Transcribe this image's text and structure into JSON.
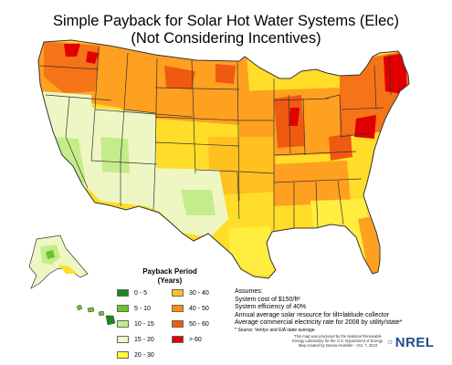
{
  "title_line1": "Simple Payback for Solar Hot Water Systems (Elec)",
  "title_line2": "(Not Considering Incentives)",
  "legend": {
    "title_line1": "Payback Period",
    "title_line2": "(Years)",
    "items": [
      {
        "label": "0 - 5",
        "color": "#1a8a1a"
      },
      {
        "label": "5 - 10",
        "color": "#6bc42c"
      },
      {
        "label": "10 - 15",
        "color": "#c5ec8a"
      },
      {
        "label": "15 - 20",
        "color": "#eef7c4"
      },
      {
        "label": "20 - 30",
        "color": "#ffff33"
      },
      {
        "label": "30 - 40",
        "color": "#ffc020"
      },
      {
        "label": "40 - 50",
        "color": "#ff8c10"
      },
      {
        "label": "50 - 60",
        "color": "#f05a10"
      },
      {
        "label": "> 60",
        "color": "#e00000"
      }
    ]
  },
  "assumptions": {
    "heading": "Assumes:",
    "lines": [
      "System cost of $150/ft²",
      "System efficiency of 40%",
      "Annual average solar resource for tilt=latitude collector",
      "Average commercial electricity rate for 2008 by utility/state*"
    ],
    "note": "* Source: Ventyx and EIA state average."
  },
  "credit": {
    "line1": "This map was produced by the National Renewable",
    "line2": "Energy Laboratory for the U.S. Department of Energy.",
    "line3": "Map created by Donna Heimiller - Oct. 7, 2010"
  },
  "logo_text": "NREL"
}
